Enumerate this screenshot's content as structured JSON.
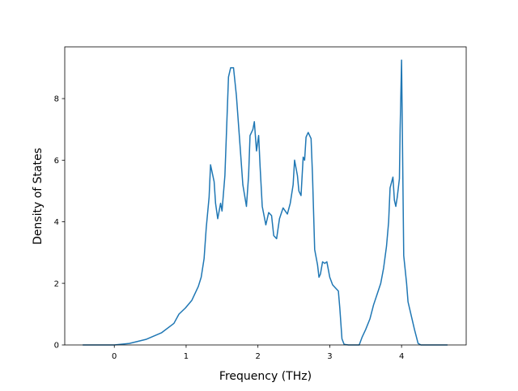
{
  "chart_data": {
    "type": "line",
    "xlabel": "Frequency (THz)",
    "ylabel": "Density of States",
    "xlim": [
      -0.69,
      4.9
    ],
    "ylim": [
      0,
      9.68
    ],
    "xticks": [
      0,
      1,
      2,
      3,
      4
    ],
    "yticks": [
      0,
      2,
      4,
      6,
      8
    ],
    "x": [
      -0.44,
      0,
      0.21,
      0.44,
      0.66,
      0.83,
      0.9,
      0.99,
      1.08,
      1.17,
      1.21,
      1.25,
      1.28,
      1.32,
      1.34,
      1.39,
      1.41,
      1.44,
      1.48,
      1.5,
      1.54,
      1.59,
      1.62,
      1.66,
      1.7,
      1.75,
      1.79,
      1.84,
      1.87,
      1.89,
      1.93,
      1.95,
      1.98,
      2.01,
      2.03,
      2.06,
      2.11,
      2.15,
      2.19,
      2.22,
      2.26,
      2.3,
      2.35,
      2.41,
      2.45,
      2.49,
      2.51,
      2.55,
      2.57,
      2.6,
      2.63,
      2.65,
      2.67,
      2.7,
      2.74,
      2.76,
      2.79,
      2.83,
      2.85,
      2.87,
      2.9,
      2.93,
      2.96,
      3.0,
      3.04,
      3.08,
      3.12,
      3.14,
      3.17,
      3.2,
      3.26,
      3.41,
      3.45,
      3.5,
      3.56,
      3.61,
      3.66,
      3.71,
      3.75,
      3.79,
      3.82,
      3.84,
      3.88,
      3.9,
      3.92,
      3.94,
      3.97,
      3.98,
      4.0,
      4.03,
      4.07,
      4.09,
      4.14,
      4.18,
      4.23,
      4.27,
      4.64
    ],
    "series": [
      {
        "name": "DOS",
        "color": "#1f77b4",
        "values": [
          0,
          0,
          0.05,
          0.18,
          0.4,
          0.7,
          1.0,
          1.2,
          1.45,
          1.9,
          2.2,
          2.8,
          3.8,
          4.8,
          5.85,
          5.3,
          4.6,
          4.1,
          4.6,
          4.35,
          5.5,
          8.7,
          9.0,
          9.0,
          8.1,
          6.5,
          5.2,
          4.5,
          5.5,
          6.8,
          7.0,
          7.25,
          6.3,
          6.8,
          5.8,
          4.5,
          3.9,
          4.3,
          4.2,
          3.55,
          3.45,
          4.1,
          4.45,
          4.25,
          4.6,
          5.2,
          6.0,
          5.5,
          5.0,
          4.85,
          6.1,
          6.0,
          6.75,
          6.9,
          6.7,
          5.5,
          3.1,
          2.6,
          2.2,
          2.3,
          2.7,
          2.65,
          2.7,
          2.2,
          1.95,
          1.85,
          1.75,
          1.2,
          0.2,
          0.02,
          0,
          0,
          0.25,
          0.5,
          0.85,
          1.3,
          1.65,
          2.0,
          2.5,
          3.2,
          4.0,
          5.1,
          5.45,
          4.7,
          4.5,
          4.8,
          5.4,
          7.0,
          9.25,
          2.9,
          2.0,
          1.4,
          0.9,
          0.5,
          0.05,
          0,
          0
        ]
      }
    ]
  }
}
